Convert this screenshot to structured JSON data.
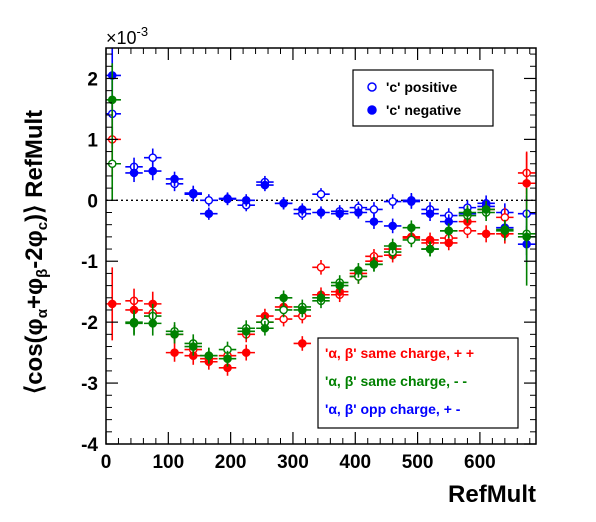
{
  "chart_data": {
    "type": "scatter",
    "xlabel": "RefMult",
    "ylabel": "⟨cos(φα +φβ -2φc)⟩ RefMult",
    "ylabel_parts": {
      "open": "⟨cos(φ",
      "sub_a": "α",
      "mid1": "+φ",
      "sub_b": "β",
      "mid2": "-2φ",
      "sub_c": "c",
      "close": ")⟩ RefMult"
    },
    "scale_label": "×10",
    "scale_exponent": "-3",
    "xlim": [
      0,
      690
    ],
    "ylim": [
      -4,
      2.5
    ],
    "x_ticks": [
      0,
      100,
      200,
      300,
      400,
      500,
      600
    ],
    "x_tick_labels": [
      "0",
      "100",
      "200",
      "300",
      "400",
      "500",
      "600"
    ],
    "y_ticks": [
      -4,
      -3,
      -2,
      -1,
      0,
      1,
      2
    ],
    "y_tick_labels": [
      "-4",
      "-3",
      "-2",
      "-1",
      "0",
      "1",
      "2"
    ],
    "zero_line": true,
    "legends": [
      {
        "position": "top-right",
        "entries": [
          {
            "label": "'c' positive",
            "marker": "open",
            "color": "#0000ff"
          },
          {
            "label": "'c' negative",
            "marker": "filled",
            "color": "#0000ff"
          }
        ]
      },
      {
        "position": "bottom-right",
        "entries": [
          {
            "label": "'α, β'  same charge, + +",
            "color": "#ff0000"
          },
          {
            "label": "'α, β'  same charge, - -",
            "color": "#008000"
          },
          {
            "label": "'α, β'  opp charge, + -",
            "color": "#0000ff"
          }
        ]
      }
    ],
    "series": [
      {
        "color": "#0000ff",
        "marker": "open",
        "x": [
          10,
          45,
          75,
          110,
          140,
          165,
          195,
          225,
          255,
          285,
          315,
          345,
          375,
          405,
          430,
          460,
          490,
          520,
          550,
          580,
          610,
          640,
          675
        ],
        "y": [
          1.42,
          0.55,
          0.7,
          0.27,
          0.12,
          0.0,
          0.03,
          -0.08,
          0.3,
          -0.05,
          -0.22,
          0.1,
          -0.18,
          -0.12,
          -0.15,
          -0.02,
          0.0,
          -0.15,
          -0.25,
          -0.12,
          -0.1,
          -0.2,
          -0.22
        ],
        "err": [
          0.55,
          0.15,
          0.15,
          0.12,
          0.12,
          0.1,
          0.1,
          0.1,
          0.1,
          0.1,
          0.1,
          0.1,
          0.1,
          0.1,
          0.12,
          0.12,
          0.12,
          0.12,
          0.12,
          0.12,
          0.13,
          0.15,
          0.3
        ]
      },
      {
        "color": "#0000ff",
        "marker": "filled",
        "x": [
          10,
          45,
          75,
          110,
          140,
          165,
          195,
          225,
          255,
          285,
          315,
          345,
          375,
          405,
          430,
          460,
          490,
          520,
          550,
          580,
          610,
          640,
          675
        ],
        "y": [
          2.05,
          0.45,
          0.48,
          0.35,
          0.1,
          -0.22,
          0.02,
          0.0,
          0.25,
          -0.05,
          -0.15,
          -0.2,
          -0.22,
          -0.2,
          -0.35,
          -0.42,
          -0.02,
          -0.22,
          -0.35,
          -0.22,
          -0.05,
          -0.45,
          -0.72
        ],
        "err": [
          0.55,
          0.15,
          0.15,
          0.12,
          0.12,
          0.1,
          0.1,
          0.1,
          0.1,
          0.1,
          0.1,
          0.1,
          0.1,
          0.1,
          0.12,
          0.12,
          0.12,
          0.12,
          0.12,
          0.12,
          0.13,
          0.15,
          0.3
        ]
      },
      {
        "color": "#ff0000",
        "marker": "open",
        "x": [
          10,
          45,
          75,
          110,
          140,
          165,
          195,
          225,
          255,
          285,
          315,
          345,
          375,
          405,
          430,
          460,
          490,
          520,
          550,
          580,
          610,
          640,
          675
        ],
        "y": [
          1.0,
          -1.65,
          -1.85,
          -2.2,
          -2.45,
          -2.6,
          -2.55,
          -2.2,
          -2.0,
          -1.95,
          -1.9,
          -1.1,
          -1.55,
          -1.25,
          -0.92,
          -0.8,
          -0.62,
          -0.7,
          -0.62,
          -0.5,
          -0.15,
          -0.28,
          0.45
        ],
        "err": [
          0.6,
          0.2,
          0.2,
          0.15,
          0.15,
          0.13,
          0.13,
          0.13,
          0.12,
          0.12,
          0.12,
          0.12,
          0.12,
          0.12,
          0.12,
          0.12,
          0.12,
          0.12,
          0.12,
          0.12,
          0.14,
          0.16,
          0.35
        ]
      },
      {
        "color": "#ff0000",
        "marker": "filled",
        "x": [
          10,
          45,
          75,
          110,
          140,
          165,
          195,
          225,
          255,
          285,
          315,
          345,
          375,
          405,
          430,
          460,
          490,
          520,
          550,
          580,
          610,
          640,
          675
        ],
        "y": [
          -1.7,
          -1.8,
          -1.7,
          -2.5,
          -2.55,
          -2.65,
          -2.75,
          -2.5,
          -1.9,
          -1.75,
          -2.35,
          -1.55,
          -1.5,
          -1.2,
          -1.0,
          -0.9,
          -0.6,
          -0.65,
          -0.7,
          -0.35,
          -0.55,
          -0.55,
          0.28
        ],
        "err": [
          0.6,
          0.2,
          0.2,
          0.15,
          0.15,
          0.13,
          0.13,
          0.13,
          0.12,
          0.12,
          0.12,
          0.12,
          0.12,
          0.12,
          0.12,
          0.12,
          0.12,
          0.12,
          0.12,
          0.12,
          0.14,
          0.16,
          0.5
        ]
      },
      {
        "color": "#008000",
        "marker": "open",
        "x": [
          10,
          45,
          75,
          110,
          140,
          165,
          195,
          225,
          255,
          285,
          315,
          345,
          375,
          405,
          430,
          460,
          490,
          520,
          550,
          580,
          610,
          640,
          675
        ],
        "y": [
          0.6,
          -2.0,
          -1.9,
          -2.15,
          -2.35,
          -2.55,
          -2.45,
          -2.1,
          -2.0,
          -1.8,
          -1.75,
          -1.65,
          -1.35,
          -1.25,
          -1.05,
          -0.85,
          -0.65,
          -0.8,
          -0.5,
          -0.25,
          -0.2,
          -0.48,
          -0.55
        ],
        "err": [
          0.6,
          0.2,
          0.2,
          0.15,
          0.15,
          0.13,
          0.13,
          0.13,
          0.12,
          0.12,
          0.12,
          0.12,
          0.12,
          0.12,
          0.12,
          0.12,
          0.12,
          0.12,
          0.12,
          0.12,
          0.14,
          0.16,
          0.35
        ]
      },
      {
        "color": "#008000",
        "marker": "filled",
        "x": [
          10,
          45,
          75,
          110,
          140,
          165,
          195,
          225,
          255,
          285,
          315,
          345,
          375,
          405,
          430,
          460,
          490,
          520,
          550,
          580,
          610,
          640,
          675
        ],
        "y": [
          1.65,
          -2.02,
          -2.02,
          -2.2,
          -2.4,
          -2.55,
          -2.6,
          -2.15,
          -2.1,
          -1.6,
          -1.8,
          -1.6,
          -1.4,
          -1.15,
          -1.05,
          -0.75,
          -0.45,
          -0.8,
          -0.5,
          -0.2,
          -0.15,
          -0.5,
          -0.6
        ],
        "err": [
          0.6,
          0.2,
          0.2,
          0.15,
          0.15,
          0.13,
          0.13,
          0.13,
          0.12,
          0.12,
          0.12,
          0.12,
          0.12,
          0.12,
          0.12,
          0.12,
          0.12,
          0.12,
          0.12,
          0.12,
          0.14,
          0.16,
          0.8
        ]
      }
    ]
  }
}
